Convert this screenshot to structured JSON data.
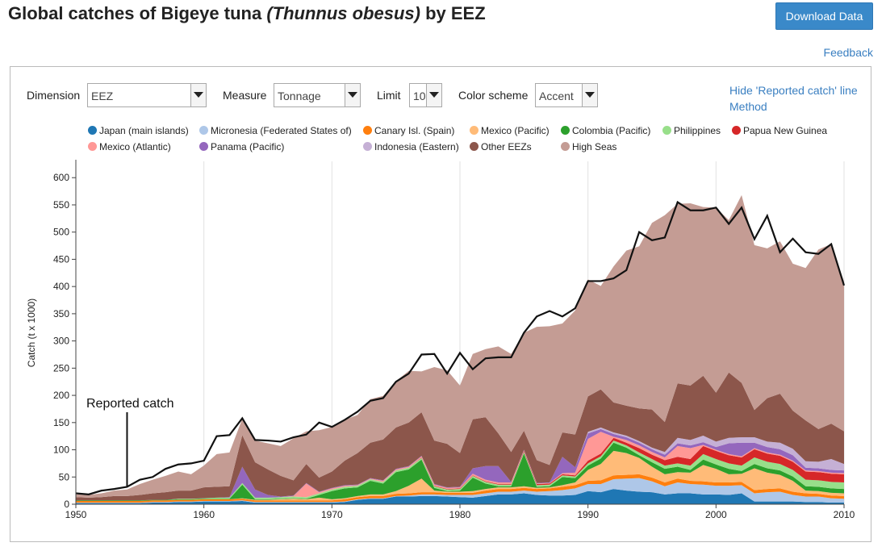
{
  "page": {
    "title_main": "Global catches of Bigeye tuna ",
    "title_sci": "(Thunnus obesus)",
    "title_tail": " by EEZ",
    "download_label": "Download Data",
    "feedback_label": "Feedback"
  },
  "controls": {
    "dimension_label": "Dimension",
    "dimension_value": "EEZ",
    "measure_label": "Measure",
    "measure_value": "Tonnage",
    "limit_label": "Limit",
    "limit_value": "10",
    "scheme_label": "Color scheme",
    "scheme_value": "Accent",
    "hide_reported_label": "Hide 'Reported catch' line",
    "method_label": "Method"
  },
  "legend": [
    {
      "label": "Japan (main islands)",
      "color": "#1f77b4"
    },
    {
      "label": "Micronesia (Federated States of)",
      "color": "#aec7e8"
    },
    {
      "label": "Canary Isl. (Spain)",
      "color": "#ff7f0e"
    },
    {
      "label": "Mexico (Pacific)",
      "color": "#ffbb78"
    },
    {
      "label": "Colombia (Pacific)",
      "color": "#2ca02c"
    },
    {
      "label": "Philippines",
      "color": "#98df8a"
    },
    {
      "label": "Papua New Guinea",
      "color": "#d62728"
    },
    {
      "label": "Mexico (Atlantic)",
      "color": "#ff9896"
    },
    {
      "label": "Panama (Pacific)",
      "color": "#9467bd"
    },
    {
      "label": "Indonesia (Eastern)",
      "color": "#c5b0d5"
    },
    {
      "label": "Other EEZs",
      "color": "#8c564b"
    },
    {
      "label": "High Seas",
      "color": "#c49c94"
    }
  ],
  "chart_data": {
    "type": "area",
    "stacked": true,
    "ylabel": "Catch (t x 1000)",
    "xlim": [
      1950,
      2010
    ],
    "ylim": [
      0,
      630
    ],
    "x_ticks": [
      1950,
      1960,
      1970,
      1980,
      1990,
      2000,
      2010
    ],
    "y_ticks": [
      0,
      50,
      100,
      150,
      200,
      250,
      300,
      350,
      400,
      450,
      500,
      550,
      600
    ],
    "grid": "vertical",
    "annotation": {
      "label": "Reported catch",
      "year": 1954
    },
    "x": [
      1950,
      1951,
      1952,
      1953,
      1954,
      1955,
      1956,
      1957,
      1958,
      1959,
      1960,
      1961,
      1962,
      1963,
      1964,
      1965,
      1966,
      1967,
      1968,
      1969,
      1970,
      1971,
      1972,
      1973,
      1974,
      1975,
      1976,
      1977,
      1978,
      1979,
      1980,
      1981,
      1982,
      1983,
      1984,
      1985,
      1986,
      1987,
      1988,
      1989,
      1990,
      1991,
      1992,
      1993,
      1994,
      1995,
      1996,
      1997,
      1998,
      1999,
      2000,
      2001,
      2002,
      2003,
      2004,
      2005,
      2006,
      2007,
      2008,
      2009,
      2010
    ],
    "series": [
      {
        "name": "Japan (main islands)",
        "values": [
          2,
          2,
          2,
          2,
          2,
          2,
          3,
          3,
          4,
          4,
          5,
          5,
          5,
          6,
          3,
          3,
          3,
          3,
          3,
          3,
          3,
          4,
          8,
          10,
          10,
          14,
          14,
          15,
          15,
          14,
          13,
          12,
          15,
          18,
          18,
          20,
          17,
          16,
          16,
          17,
          24,
          22,
          28,
          25,
          23,
          22,
          18,
          20,
          20,
          18,
          18,
          17,
          20,
          5,
          5,
          5,
          5,
          4,
          4,
          3,
          3
        ]
      },
      {
        "name": "Micronesia (Federated States of)",
        "values": [
          1,
          1,
          1,
          1,
          1,
          1,
          1,
          1,
          1,
          1,
          1,
          1,
          1,
          1,
          1,
          1,
          1,
          1,
          1,
          1,
          1,
          1,
          1,
          1,
          1,
          1,
          2,
          3,
          3,
          3,
          4,
          5,
          5,
          5,
          5,
          5,
          6,
          8,
          10,
          12,
          13,
          15,
          18,
          22,
          25,
          20,
          15,
          20,
          17,
          18,
          16,
          17,
          15,
          15,
          17,
          18,
          12,
          10,
          10,
          8,
          7
        ]
      },
      {
        "name": "Canary Isl. (Spain)",
        "values": [
          3,
          3,
          3,
          3,
          3,
          3,
          3,
          3,
          3,
          3,
          3,
          3,
          3,
          3,
          3,
          3,
          3,
          3,
          3,
          3,
          3,
          4,
          4,
          4,
          4,
          4,
          4,
          4,
          4,
          4,
          4,
          4,
          5,
          5,
          5,
          5,
          5,
          5,
          6,
          6,
          6,
          7,
          7,
          7,
          7,
          7,
          7,
          7,
          6,
          6,
          6,
          6,
          6,
          6,
          6,
          6,
          6,
          6,
          5,
          5,
          5
        ]
      },
      {
        "name": "Mexico (Pacific)",
        "values": [
          0,
          0,
          0,
          0,
          0,
          0,
          0,
          0,
          0,
          0,
          0,
          0,
          0,
          1,
          1,
          1,
          2,
          3,
          2,
          5,
          2,
          2,
          2,
          3,
          3,
          5,
          14,
          25,
          3,
          2,
          2,
          3,
          3,
          3,
          3,
          3,
          2,
          2,
          3,
          5,
          20,
          30,
          45,
          40,
          30,
          20,
          15,
          12,
          15,
          30,
          25,
          15,
          15,
          40,
          30,
          25,
          20,
          5,
          5,
          5,
          5
        ]
      },
      {
        "name": "Colombia (Pacific)",
        "values": [
          1,
          1,
          1,
          1,
          1,
          1,
          1,
          1,
          1,
          1,
          1,
          1,
          1,
          25,
          1,
          1,
          1,
          1,
          1,
          5,
          15,
          18,
          16,
          25,
          20,
          35,
          30,
          35,
          5,
          1,
          2,
          25,
          10,
          2,
          2,
          60,
          2,
          2,
          15,
          8,
          8,
          10,
          15,
          10,
          5,
          8,
          10,
          10,
          5,
          10,
          8,
          10,
          5,
          8,
          8,
          8,
          8,
          8,
          8,
          8,
          8
        ]
      },
      {
        "name": "Philippines",
        "values": [
          0,
          0,
          0,
          0,
          0,
          0,
          0,
          0,
          1,
          1,
          1,
          2,
          2,
          3,
          3,
          3,
          3,
          3,
          3,
          3,
          3,
          3,
          3,
          3,
          3,
          3,
          3,
          3,
          3,
          3,
          3,
          3,
          3,
          3,
          3,
          3,
          3,
          3,
          3,
          3,
          4,
          4,
          4,
          4,
          5,
          6,
          6,
          6,
          8,
          10,
          10,
          10,
          10,
          12,
          12,
          12,
          12,
          12,
          12,
          12,
          12
        ]
      },
      {
        "name": "Papua New Guinea",
        "values": [
          0,
          0,
          0,
          0,
          0,
          0,
          0,
          0,
          0,
          0,
          0,
          0,
          0,
          0,
          0,
          0,
          0,
          0,
          0,
          0,
          0,
          0,
          0,
          0,
          0,
          0,
          0,
          1,
          1,
          1,
          1,
          1,
          1,
          1,
          1,
          2,
          2,
          2,
          2,
          2,
          5,
          5,
          5,
          5,
          8,
          8,
          10,
          12,
          12,
          15,
          15,
          15,
          15,
          15,
          15,
          15,
          15,
          15,
          15,
          15,
          15
        ]
      },
      {
        "name": "Mexico (Atlantic)",
        "values": [
          0,
          0,
          0,
          0,
          0,
          0,
          0,
          0,
          0,
          0,
          0,
          0,
          0,
          0,
          0,
          0,
          0,
          1,
          25,
          2,
          2,
          2,
          1,
          1,
          2,
          2,
          2,
          2,
          2,
          2,
          2,
          3,
          3,
          3,
          3,
          1,
          1,
          1,
          2,
          5,
          40,
          40,
          2,
          5,
          5,
          5,
          5,
          20,
          20,
          2,
          2,
          2,
          2,
          2,
          2,
          2,
          2,
          2,
          2,
          2,
          2
        ]
      },
      {
        "name": "Panama (Pacific)",
        "values": [
          0,
          0,
          0,
          0,
          0,
          0,
          0,
          0,
          0,
          0,
          0,
          0,
          1,
          30,
          15,
          5,
          1,
          1,
          1,
          1,
          1,
          1,
          1,
          1,
          1,
          1,
          1,
          1,
          1,
          1,
          1,
          10,
          25,
          30,
          1,
          1,
          1,
          1,
          30,
          10,
          10,
          5,
          5,
          5,
          5,
          5,
          5,
          5,
          5,
          5,
          5,
          20,
          25,
          10,
          10,
          10,
          10,
          5,
          5,
          5,
          5
        ]
      },
      {
        "name": "Indonesia (Eastern)",
        "values": [
          0,
          0,
          0,
          0,
          0,
          0,
          0,
          0,
          0,
          0,
          0,
          0,
          0,
          0,
          0,
          0,
          0,
          0,
          0,
          0,
          0,
          0,
          0,
          0,
          0,
          0,
          0,
          0,
          0,
          0,
          0,
          0,
          0,
          0,
          0,
          0,
          0,
          0,
          0,
          0,
          3,
          3,
          3,
          3,
          3,
          3,
          5,
          10,
          10,
          12,
          10,
          10,
          10,
          10,
          10,
          12,
          12,
          12,
          12,
          20,
          12
        ]
      },
      {
        "name": "Other EEZs",
        "values": [
          6,
          5,
          6,
          8,
          8,
          10,
          12,
          14,
          15,
          15,
          20,
          20,
          20,
          58,
          50,
          47,
          38,
          28,
          35,
          26,
          30,
          45,
          58,
          65,
          75,
          76,
          80,
          80,
          80,
          80,
          62,
          90,
          90,
          60,
          55,
          35,
          42,
          32,
          45,
          60,
          65,
          70,
          55,
          55,
          60,
          70,
          55,
          100,
          100,
          110,
          90,
          120,
          100,
          50,
          80,
          90,
          70,
          75,
          60,
          65,
          60
        ]
      },
      {
        "name": "High Seas",
        "values": [
          5,
          5,
          7,
          10,
          12,
          20,
          25,
          30,
          35,
          30,
          40,
          60,
          62,
          30,
          40,
          48,
          55,
          77,
          60,
          87,
          82,
          75,
          70,
          80,
          80,
          85,
          95,
          75,
          135,
          135,
          124,
          120,
          125,
          160,
          180,
          180,
          245,
          255,
          200,
          228,
          215,
          190,
          250,
          285,
          298,
          343,
          380,
          330,
          335,
          310,
          340,
          280,
          345,
          303,
          275,
          280,
          270,
          280,
          330,
          330,
          275
        ]
      }
    ],
    "reported": [
      20,
      18,
      25,
      28,
      32,
      45,
      50,
      65,
      73,
      75,
      80,
      125,
      127,
      158,
      118,
      117,
      115,
      123,
      128,
      150,
      142,
      155,
      170,
      190,
      195,
      225,
      240,
      275,
      276,
      240,
      278,
      248,
      268,
      270,
      270,
      315,
      345,
      355,
      345,
      360,
      410,
      410,
      415,
      430,
      500,
      485,
      490,
      555,
      540,
      540,
      545,
      515,
      545,
      487,
      530,
      463,
      488,
      463,
      460,
      478,
      402
    ]
  }
}
